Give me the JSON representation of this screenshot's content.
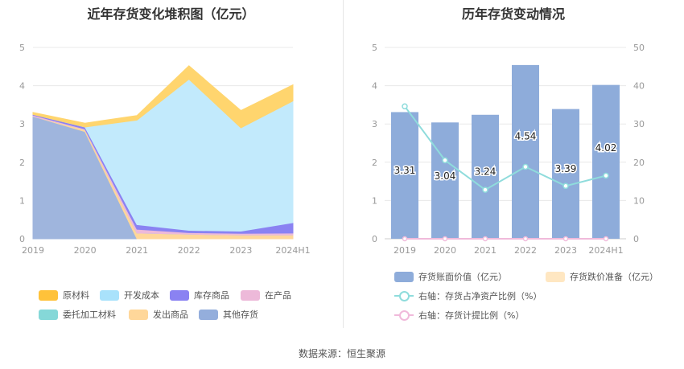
{
  "left": {
    "title": "近年存货变化堆积图（亿元）",
    "legend": [
      {
        "label": "原材料",
        "color": "#FFC23A"
      },
      {
        "label": "开发成本",
        "color": "#A9E2FB"
      },
      {
        "label": "库存商品",
        "color": "#8A82F2"
      },
      {
        "label": "在产品",
        "color": "#EDB9D9"
      },
      {
        "label": "委托加工材料",
        "color": "#85D8D8"
      },
      {
        "label": "发出商品",
        "color": "#FFD79A"
      },
      {
        "label": "其他存货",
        "color": "#94AEDC"
      }
    ]
  },
  "right": {
    "title": "历年存货变动情况",
    "legend": [
      {
        "label": "存货账面价值（亿元）",
        "color": "#8EACDA",
        "kind": "bar"
      },
      {
        "label": "存货跌价准备（亿元）",
        "color": "#FFE7C2",
        "kind": "bar"
      },
      {
        "label": "右轴：存货占净资产比例（%）",
        "color": "#8FDCDC",
        "kind": "line"
      },
      {
        "label": "右轴：存货计提比例（%）",
        "color": "#F0BADB",
        "kind": "line"
      }
    ]
  },
  "source": "数据来源：恒生聚源",
  "chart_data": [
    {
      "type": "area",
      "stacked": true,
      "title": "近年存货变化堆积图（亿元）",
      "categories": [
        "2019",
        "2020",
        "2021",
        "2022",
        "2023",
        "2024H1"
      ],
      "ylim": [
        0,
        5
      ],
      "yticks": [
        0,
        1,
        2,
        3,
        4,
        5
      ],
      "grid": true,
      "legend_position": "bottom",
      "series": [
        {
          "name": "其他存货",
          "color": "#9FB5DD",
          "values": [
            3.2,
            2.8,
            0.0,
            0.0,
            0.0,
            0.0
          ]
        },
        {
          "name": "发出商品",
          "color": "#FFD79A",
          "values": [
            0.0,
            0.05,
            0.15,
            0.12,
            0.1,
            0.1
          ]
        },
        {
          "name": "委托加工材料",
          "color": "#85D8D8",
          "values": [
            0.0,
            0.0,
            0.0,
            0.0,
            0.0,
            0.0
          ]
        },
        {
          "name": "在产品",
          "color": "#EDB9D9",
          "values": [
            0.03,
            0.02,
            0.1,
            0.04,
            0.04,
            0.05
          ]
        },
        {
          "name": "库存商品",
          "color": "#8A82F2",
          "values": [
            0.02,
            0.05,
            0.12,
            0.06,
            0.06,
            0.27
          ]
        },
        {
          "name": "开发成本",
          "color": "#C2EAFC",
          "values": [
            0.0,
            0.0,
            2.73,
            3.95,
            2.7,
            3.18
          ]
        },
        {
          "name": "原材料",
          "color": "#FFD56E",
          "values": [
            0.05,
            0.1,
            0.12,
            0.35,
            0.45,
            0.42
          ]
        }
      ]
    },
    {
      "type": "bar",
      "title": "历年存货变动情况",
      "categories": [
        "2019",
        "2020",
        "2021",
        "2022",
        "2023",
        "2024H1"
      ],
      "ylim": [
        0,
        5
      ],
      "yticks": [
        0,
        1,
        2,
        3,
        4,
        5
      ],
      "y2lim": [
        0,
        50
      ],
      "y2ticks": [
        0,
        10,
        20,
        30,
        40,
        50
      ],
      "grid": true,
      "legend_position": "bottom",
      "series": [
        {
          "name": "存货账面价值（亿元）",
          "type": "bar",
          "axis": "left",
          "color": "#8EACDA",
          "values": [
            3.31,
            3.04,
            3.24,
            4.54,
            3.39,
            4.02
          ],
          "labels": [
            "3.31",
            "3.04",
            "3.24",
            "4.54",
            "3.39",
            "4.02"
          ]
        },
        {
          "name": "存货跌价准备（亿元）",
          "type": "bar",
          "axis": "left",
          "color": "#FFE7C2",
          "values": [
            0,
            0,
            0,
            0,
            0,
            0
          ]
        },
        {
          "name": "右轴：存货占净资产比例（%）",
          "type": "line",
          "axis": "right",
          "color": "#8FDCDC",
          "values": [
            34.6,
            20.5,
            12.8,
            18.8,
            13.8,
            16.5
          ]
        },
        {
          "name": "右轴：存货计提比例（%）",
          "type": "line",
          "axis": "right",
          "color": "#F0BADB",
          "values": [
            0,
            0,
            0,
            0,
            0,
            0
          ]
        }
      ]
    }
  ]
}
